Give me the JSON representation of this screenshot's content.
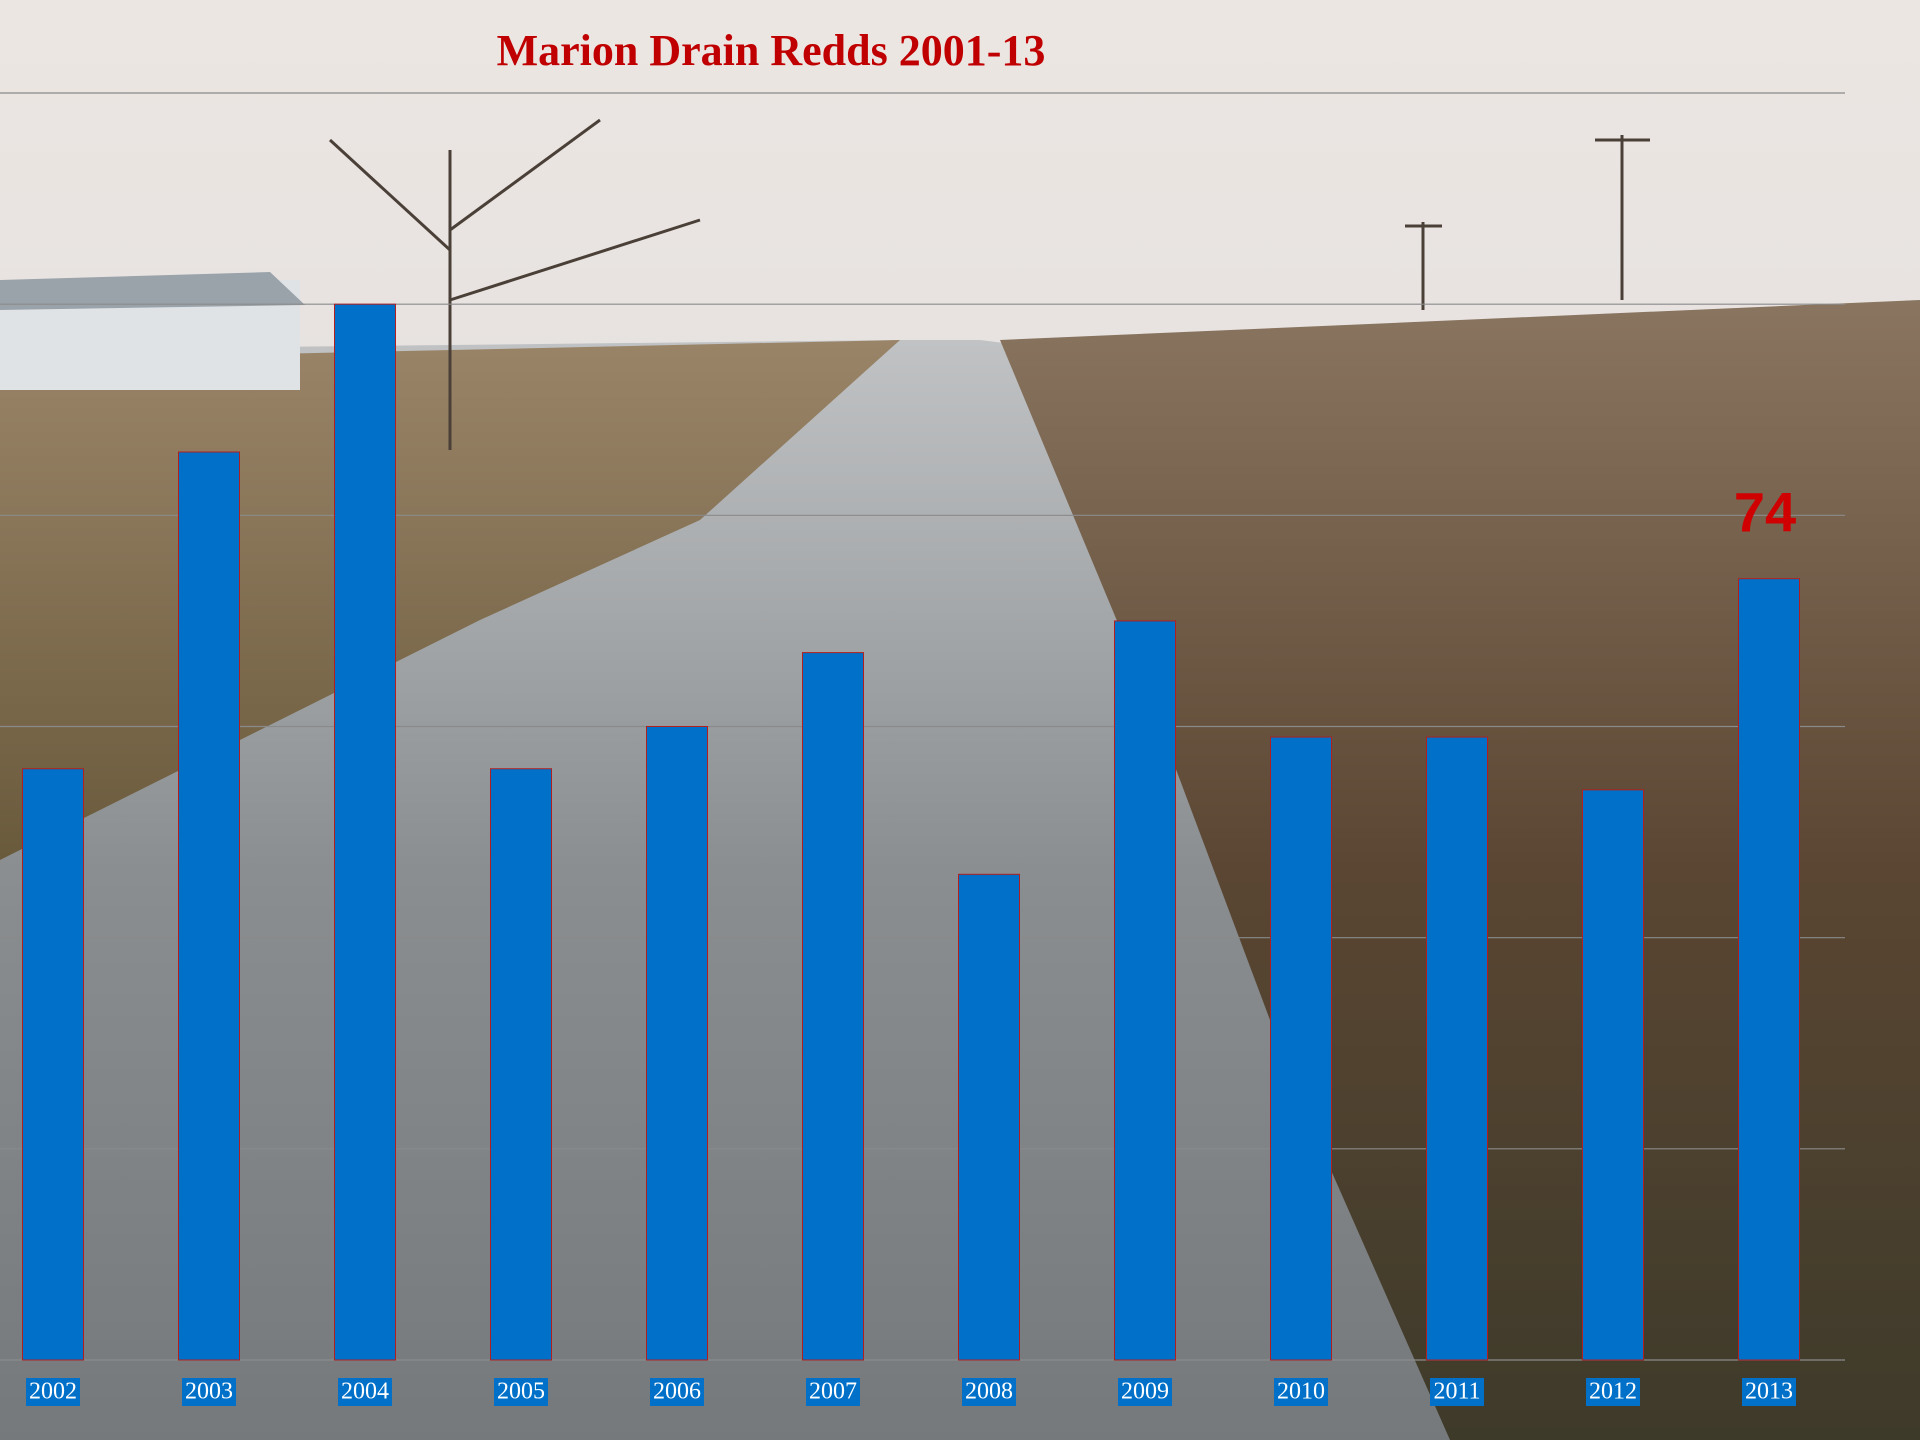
{
  "chart_data": {
    "type": "bar",
    "title": "Marion Drain Redds 2001-13",
    "categories": [
      "2002",
      "2003",
      "2004",
      "2005",
      "2006",
      "2007",
      "2008",
      "2009",
      "2010",
      "2011",
      "2012",
      "2013"
    ],
    "values": [
      56,
      86,
      100,
      56,
      60,
      67,
      46,
      70,
      59,
      59,
      54,
      74
    ],
    "value_labels": [
      null,
      null,
      null,
      null,
      null,
      null,
      null,
      null,
      null,
      null,
      null,
      "74"
    ],
    "color": "#0070c8",
    "ylim": [
      0,
      120
    ],
    "yticks": [
      0,
      20,
      40,
      60,
      80,
      100,
      120
    ],
    "grid": true
  }
}
